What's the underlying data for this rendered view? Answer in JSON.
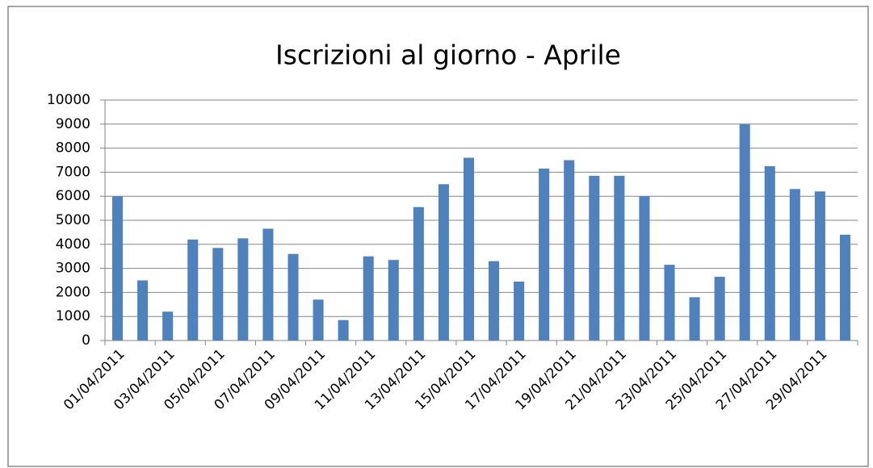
{
  "chart_data": {
    "type": "bar",
    "title": "Iscrizioni al giorno - Aprile",
    "categories": [
      "01/04/2011",
      null,
      "03/04/2011",
      null,
      "05/04/2011",
      null,
      "07/04/2011",
      null,
      "09/04/2011",
      null,
      "11/04/2011",
      null,
      "13/04/2011",
      null,
      "15/04/2011",
      null,
      "17/04/2011",
      null,
      "19/04/2011",
      null,
      "21/04/2011",
      null,
      "23/04/2011",
      null,
      "25/04/2011",
      null,
      "27/04/2011",
      null,
      "29/04/2011",
      null
    ],
    "values": [
      6000,
      2500,
      1200,
      4200,
      3850,
      4250,
      4650,
      3600,
      1700,
      850,
      3500,
      3350,
      5550,
      6500,
      7600,
      3300,
      2450,
      7150,
      7500,
      6850,
      6850,
      6000,
      3150,
      1800,
      2650,
      9000,
      7250,
      6300,
      6200,
      4400
    ],
    "color": "#4f81bd",
    "ylim": [
      0,
      10000
    ],
    "yticks": [
      0,
      1000,
      2000,
      3000,
      4000,
      5000,
      6000,
      7000,
      8000,
      9000,
      10000
    ],
    "grid": true
  }
}
